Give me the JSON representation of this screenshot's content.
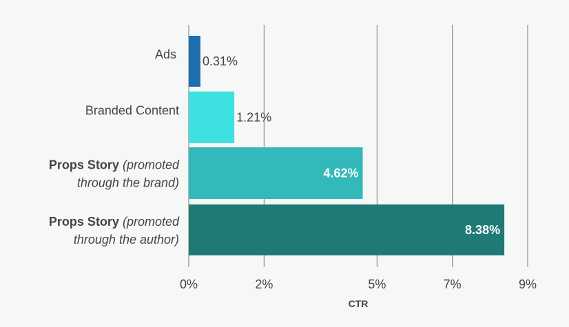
{
  "chart_data": {
    "type": "bar",
    "orientation": "horizontal",
    "categories": [
      {
        "bold": "Ads",
        "italic": "",
        "line2": ""
      },
      {
        "bold": "",
        "italic": "",
        "line2": "",
        "plain": "Branded Content"
      },
      {
        "bold": "Props Story",
        "italic": "(promoted",
        "line2": "through the brand)"
      },
      {
        "bold": "Props Story",
        "italic": "(promoted",
        "line2": "through the author)"
      }
    ],
    "values": [
      0.31,
      1.21,
      4.62,
      8.38
    ],
    "value_labels": [
      "0.31%",
      "1.21%",
      "4.62%",
      "8.38%"
    ],
    "colors": [
      "#1f6fb0",
      "#3ee0e0",
      "#33b9b9",
      "#1f7a76"
    ],
    "label_inside": [
      false,
      false,
      true,
      true
    ],
    "xlim": [
      0,
      9
    ],
    "ticks": [
      0,
      2,
      5,
      7,
      9
    ],
    "tick_labels": [
      "0%",
      "2%",
      "5%",
      "7%",
      "9%"
    ],
    "xlabel": "CTR",
    "grid": true
  }
}
